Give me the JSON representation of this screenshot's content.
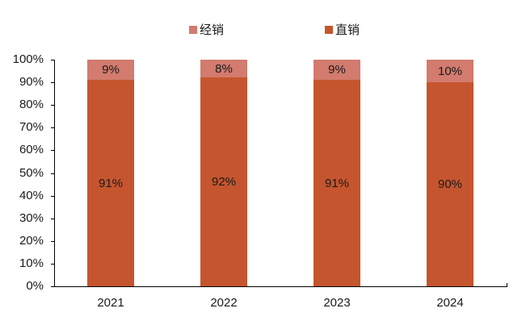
{
  "chart_data": {
    "type": "bar",
    "stacked": true,
    "title": "",
    "xlabel": "",
    "ylabel": "",
    "categories": [
      "2021",
      "2022",
      "2023",
      "2024"
    ],
    "series": [
      {
        "name": "直销",
        "color": "#C5552E",
        "values": [
          91,
          92,
          91,
          90
        ],
        "labels": [
          "91%",
          "92%",
          "91%",
          "90%"
        ]
      },
      {
        "name": "经销",
        "color": "#D27B6E",
        "values": [
          9,
          8,
          9,
          10
        ],
        "labels": [
          "9%",
          "8%",
          "9%",
          "10%"
        ]
      }
    ],
    "ylim": [
      0,
      100
    ],
    "yticks": [
      "0%",
      "10%",
      "20%",
      "30%",
      "40%",
      "50%",
      "60%",
      "70%",
      "80%",
      "90%",
      "100%"
    ],
    "grid": false,
    "legend_position": "top"
  },
  "legend": [
    {
      "label": "经销",
      "color": "#D27B6E"
    },
    {
      "label": "直销",
      "color": "#C5552E"
    }
  ]
}
